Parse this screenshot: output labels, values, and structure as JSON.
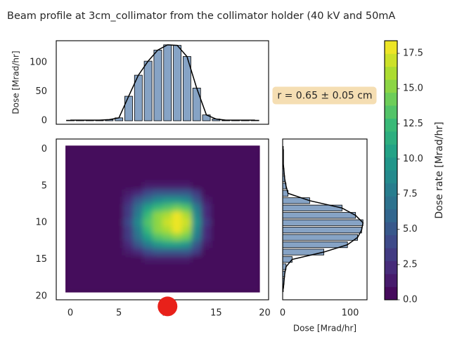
{
  "title": "Beam profile at 3cm_collimator from the collimator holder (40 kV and 50mA",
  "chart_data": [
    {
      "type": "bar",
      "x": [
        0,
        1,
        2,
        3,
        4,
        5,
        6,
        7,
        8,
        9,
        10,
        11,
        12,
        13,
        14,
        15,
        16,
        17,
        18,
        19
      ],
      "values": [
        1,
        1,
        1,
        1,
        2,
        5,
        42,
        78,
        102,
        121,
        130,
        129,
        110,
        56,
        10,
        3,
        1,
        1,
        1,
        1
      ],
      "color": "#86a3c5",
      "edgecolor": "#000000",
      "line_color": "#000000",
      "xlim": [
        -1.45,
        20.4
      ],
      "ylim": [
        -6,
        137
      ],
      "yticks": [
        0,
        50,
        100
      ],
      "ylabel": "Dose [Mrad/hr]"
    },
    {
      "type": "heatmap",
      "colormap": "viridis",
      "vlim": [
        0,
        18.4
      ],
      "x": [
        0,
        1,
        2,
        3,
        4,
        5,
        6,
        7,
        8,
        9,
        10,
        11,
        12,
        13,
        14,
        15,
        16,
        17,
        18,
        19
      ],
      "y": [
        0,
        1,
        2,
        3,
        4,
        5,
        6,
        7,
        8,
        9,
        10,
        11,
        12,
        13,
        14,
        15,
        16,
        17,
        18,
        19
      ],
      "z": [
        [
          0,
          0,
          0,
          0,
          0,
          0,
          0,
          0,
          0,
          0,
          0,
          0,
          0,
          0,
          0,
          0,
          0,
          0,
          0,
          0
        ],
        [
          0,
          0,
          0,
          0,
          0,
          0,
          0,
          0,
          0,
          0,
          0,
          0,
          0,
          0,
          0,
          0,
          0,
          0,
          0,
          0
        ],
        [
          0,
          0,
          0,
          0,
          0,
          0,
          0,
          0,
          0,
          0,
          0,
          0,
          0,
          0,
          0,
          0,
          0,
          0,
          0,
          0
        ],
        [
          0,
          0,
          0,
          0,
          0,
          0,
          0,
          0,
          0,
          0,
          0,
          0,
          0,
          0,
          0,
          0,
          0,
          0,
          0,
          0
        ],
        [
          0,
          0,
          0,
          0,
          0,
          0.0,
          0.1,
          0.2,
          0.3,
          0.3,
          0.3,
          0.4,
          0.3,
          0.2,
          0.1,
          0.0,
          0,
          0,
          0,
          0
        ],
        [
          0,
          0,
          0,
          0,
          0,
          0.1,
          0.4,
          0.8,
          1.3,
          1.6,
          1.7,
          1.8,
          1.7,
          0.9,
          0.3,
          0.1,
          0,
          0,
          0,
          0
        ],
        [
          0,
          0,
          0,
          0,
          0,
          0.3,
          1.1,
          2.5,
          3.9,
          4.7,
          5.1,
          5.5,
          5.0,
          2.8,
          0.8,
          0.2,
          0,
          0,
          0,
          0
        ],
        [
          0,
          0,
          0,
          0,
          0,
          0.5,
          2.0,
          4.6,
          7.1,
          8.6,
          9.3,
          10.1,
          9.1,
          5.1,
          1.5,
          0.3,
          0,
          0,
          0,
          0
        ],
        [
          0,
          0,
          0,
          0,
          0,
          0.7,
          2.9,
          6.6,
          10.3,
          12.5,
          13.5,
          14.7,
          13.2,
          7.4,
          2.2,
          0.4,
          0,
          0,
          0,
          0
        ],
        [
          0,
          0,
          0,
          0,
          0,
          0.9,
          3.5,
          7.9,
          12.2,
          14.9,
          16.1,
          17.5,
          15.7,
          8.7,
          2.6,
          0.5,
          0,
          0,
          0,
          0
        ],
        [
          0,
          0,
          0,
          0,
          0,
          0.9,
          3.7,
          8.3,
          12.9,
          15.6,
          16.9,
          18.4,
          16.6,
          9.2,
          2.8,
          0.6,
          0,
          0,
          0,
          0
        ],
        [
          0,
          0,
          0,
          0,
          0,
          0.9,
          3.6,
          8.0,
          12.5,
          15.2,
          16.4,
          17.8,
          16.1,
          8.9,
          2.7,
          0.5,
          0,
          0,
          0,
          0
        ],
        [
          0,
          0,
          0,
          0,
          0,
          0.8,
          3.1,
          7.0,
          10.9,
          13.3,
          14.4,
          15.6,
          14.1,
          7.8,
          2.3,
          0.5,
          0,
          0,
          0,
          0
        ],
        [
          0,
          0,
          0,
          0,
          0,
          0.6,
          2.2,
          5.0,
          7.7,
          9.4,
          10.2,
          11.0,
          9.9,
          5.5,
          1.7,
          0.3,
          0,
          0,
          0,
          0
        ],
        [
          0,
          0,
          0,
          0,
          0,
          0.3,
          1.1,
          2.5,
          3.9,
          4.7,
          5.1,
          5.5,
          5.0,
          2.8,
          0.8,
          0.2,
          0,
          0,
          0,
          0
        ],
        [
          0,
          0,
          0,
          0,
          0,
          0.1,
          0.4,
          0.8,
          1.3,
          1.6,
          1.7,
          1.8,
          1.7,
          0.9,
          0.3,
          0.1,
          0,
          0,
          0,
          0
        ],
        [
          0,
          0,
          0,
          0,
          0,
          0.0,
          0.1,
          0.2,
          0.3,
          0.3,
          0.3,
          0.4,
          0.3,
          0.2,
          0.1,
          0.0,
          0,
          0,
          0,
          0
        ],
        [
          0,
          0,
          0,
          0,
          0,
          0,
          0,
          0,
          0,
          0,
          0,
          0,
          0,
          0,
          0,
          0,
          0,
          0,
          0,
          0
        ],
        [
          0,
          0,
          0,
          0,
          0,
          0,
          0,
          0,
          0,
          0,
          0,
          0,
          0,
          0,
          0,
          0,
          0,
          0,
          0,
          0
        ],
        [
          0,
          0,
          0,
          0,
          0,
          0,
          0,
          0,
          0,
          0,
          0,
          0,
          0,
          0,
          0,
          0,
          0,
          0,
          0,
          0
        ]
      ],
      "xlim": [
        -1.45,
        20.4
      ],
      "ylim": [
        20.5,
        -1.4
      ],
      "xticks": [
        0,
        5,
        10,
        15,
        20
      ],
      "yticks": [
        0,
        5,
        10,
        15,
        20
      ],
      "marker": {
        "x": 10,
        "y": 21.4,
        "color": "#e8211a"
      },
      "annotation": "r = 0.65 ± 0.05 cm",
      "annotation_color": "#f5deb3"
    },
    {
      "type": "hbar",
      "y": [
        0,
        1,
        2,
        3,
        4,
        5,
        6,
        7,
        8,
        9,
        10,
        11,
        12,
        13,
        14,
        15,
        16,
        17,
        18,
        19
      ],
      "values": [
        1,
        1,
        1,
        2,
        3,
        5,
        8,
        40,
        88,
        108,
        119,
        117,
        111,
        96,
        61,
        14,
        5,
        3,
        2,
        1
      ],
      "color": "#86a3c5",
      "edgecolor": "#000000",
      "line_color": "#000000",
      "xlim": [
        0,
        125
      ],
      "ylim": [
        20.5,
        -1.4
      ],
      "xticks": [
        0,
        100
      ],
      "xlabel": "Dose [Mrad/hr]"
    },
    {
      "type": "colorbar",
      "colormap": "viridis",
      "ylim": [
        0,
        18.4
      ],
      "yticks": [
        {
          "value": 0,
          "label": "0.0"
        },
        2.5,
        {
          "value": 5,
          "label": "5.0"
        },
        7.5,
        {
          "value": 10,
          "label": "10.0"
        },
        12.5,
        {
          "value": 15,
          "label": "15.0"
        },
        17.5
      ],
      "ylabel": "Dose rate [Mrad/hr]"
    }
  ]
}
